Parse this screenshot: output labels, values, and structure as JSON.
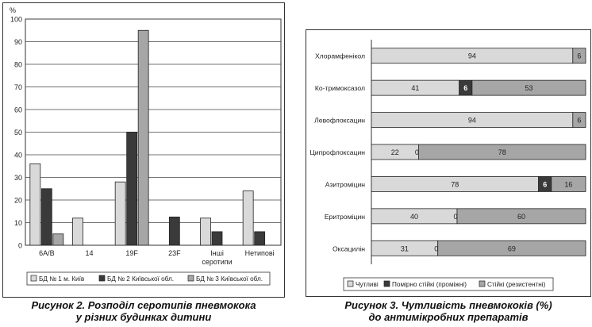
{
  "chart_data": [
    {
      "type": "bar",
      "ylabel": "%",
      "ylim": [
        0,
        100
      ],
      "yticks": [
        0,
        10,
        20,
        30,
        40,
        50,
        60,
        70,
        80,
        90,
        100
      ],
      "categories": [
        "6A/B",
        "14",
        "19F",
        "23F",
        "Інші серотипи",
        "Нетипові"
      ],
      "category_lines": [
        [
          "6A/B"
        ],
        [
          "14"
        ],
        [
          "19F"
        ],
        [
          "23F"
        ],
        [
          "Інші",
          "серотипи"
        ],
        [
          "Нетипові"
        ]
      ],
      "series": [
        {
          "name": "БД № 1 м. Київ",
          "color": "#d9d9d9",
          "values": [
            36,
            12,
            28,
            null,
            12,
            24
          ]
        },
        {
          "name": "БД № 2 Київської обл.",
          "color": "#3a3a3a",
          "values": [
            25,
            null,
            50,
            12.5,
            6,
            6
          ]
        },
        {
          "name": "БД № 3 Київської обл.",
          "color": "#a6a6a6",
          "values": [
            5,
            null,
            95,
            null,
            null,
            null
          ]
        }
      ],
      "grid": true,
      "legend": "bottom"
    },
    {
      "type": "bar",
      "orientation": "horizontal",
      "stacked": true,
      "categories": [
        "Хлорамфенікол",
        "Ко-тримоксазол",
        "Левофлоксацин",
        "Ципрофлоксацин",
        "Азитроміцин",
        "Еритроміцин",
        "Оксацилін"
      ],
      "series": [
        {
          "name": "Чутливі",
          "color": "#d9d9d9",
          "values": [
            94,
            41,
            94,
            22,
            78,
            40,
            31
          ]
        },
        {
          "name": "Помірно стійкі (проміжні)",
          "color": "#3a3a3a",
          "values": [
            0,
            6,
            0,
            0,
            6,
            0,
            0
          ]
        },
        {
          "name": "Стійкі (резистентні)",
          "color": "#a6a6a6",
          "values": [
            6,
            53,
            6,
            78,
            16,
            60,
            69
          ]
        }
      ],
      "data_labels": [
        [
          "94",
          "",
          "6"
        ],
        [
          "41",
          "6",
          "53"
        ],
        [
          "94",
          "",
          "6"
        ],
        [
          "22",
          "0",
          "78"
        ],
        [
          "78",
          "6",
          "16"
        ],
        [
          "40",
          "0",
          "60"
        ],
        [
          "31",
          "0",
          "69"
        ]
      ],
      "legend": "bottom"
    }
  ],
  "captions": {
    "left": {
      "line1": "Рисунок 2. Розподіл серотипів пневмокока",
      "line2": "у різних будинках дитини"
    },
    "right": {
      "line1": "Рисунок 3. Чутливість пневмококів (%)",
      "line2": "до антимікробних препаратів"
    }
  }
}
